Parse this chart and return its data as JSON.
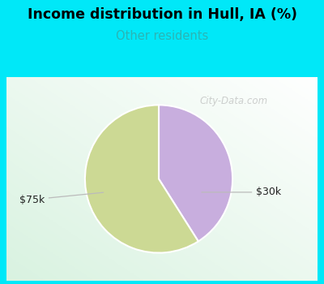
{
  "title": "Income distribution in Hull, IA (%)",
  "subtitle": "Other residents",
  "title_color": "#000000",
  "subtitle_color": "#2ab5b5",
  "background_outer": "#00e8f8",
  "watermark": "City-Data.com",
  "slices": [
    41,
    59
  ],
  "slice_colors": [
    "#c8aede",
    "#ccd994"
  ],
  "slice_labels": [
    "$30k",
    "$75k"
  ],
  "startangle": 90,
  "figsize": [
    4.0,
    3.5
  ],
  "dpi": 100,
  "inner_bg_left": "#d8f5e0",
  "inner_bg_right": "#f0f8f8"
}
